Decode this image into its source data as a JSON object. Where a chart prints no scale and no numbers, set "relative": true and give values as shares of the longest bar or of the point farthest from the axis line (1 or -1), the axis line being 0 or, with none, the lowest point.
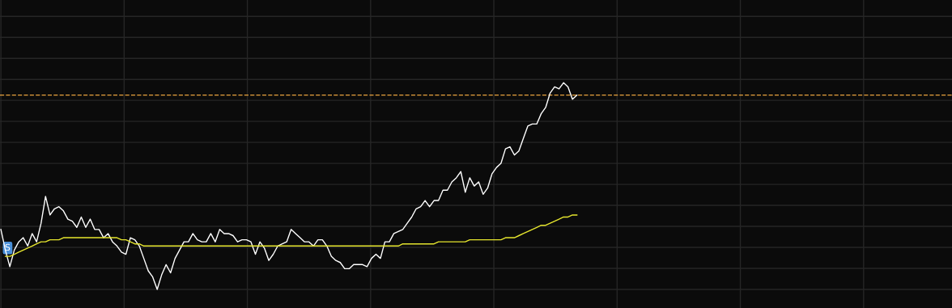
{
  "chart_data": {
    "type": "line",
    "relative": true,
    "grid": true,
    "marker": "none",
    "line_style": "solid",
    "categories": [
      null,
      null,
      null,
      null,
      null,
      null,
      null,
      null,
      null,
      null,
      null,
      null,
      null,
      null,
      null,
      null,
      null,
      null,
      null,
      null,
      null,
      null,
      null,
      null,
      null,
      null,
      null,
      null,
      null,
      null,
      null,
      null,
      null,
      null,
      null,
      null,
      null,
      null,
      null,
      null,
      null,
      null,
      null,
      null,
      null,
      null,
      null,
      null,
      null,
      null,
      null,
      null,
      null,
      null,
      null,
      null,
      null,
      null,
      null,
      null,
      null,
      null,
      null,
      null,
      null,
      null,
      null,
      null,
      null,
      null,
      null,
      null,
      null,
      null,
      null,
      null,
      null,
      null,
      null,
      null,
      null,
      null,
      null,
      null,
      null,
      null,
      null,
      null,
      null,
      null,
      null,
      null,
      null,
      null,
      null,
      null,
      null,
      null,
      null,
      null,
      null,
      null,
      null,
      null,
      null,
      null,
      null,
      null,
      null,
      null,
      null,
      null,
      null,
      null,
      null,
      null,
      null,
      null,
      null,
      null,
      null,
      null,
      null,
      null,
      null,
      null,
      null,
      null,
      null,
      null,
      null,
      null,
      null,
      null,
      null,
      null,
      null,
      null,
      null,
      null,
      null,
      null,
      null,
      null,
      null,
      null,
      null,
      null,
      null,
      null,
      null,
      null,
      null,
      null,
      null,
      null,
      null,
      null,
      null,
      null,
      null,
      null,
      null,
      null,
      null,
      null,
      null,
      null,
      null,
      null,
      null,
      null,
      null,
      null,
      null,
      null,
      null,
      null,
      null,
      null,
      null,
      null,
      null,
      null,
      null,
      null,
      null,
      null,
      null,
      null,
      null,
      null,
      null,
      null,
      null,
      null,
      null,
      null,
      null,
      null,
      null,
      null,
      null,
      null,
      null,
      null,
      null,
      null,
      null,
      null,
      null,
      null,
      null,
      null
    ],
    "series": [
      {
        "color": "#ffffff",
        "values": [
          0.29,
          0.19,
          0.11,
          0.19,
          0.23,
          0.25,
          0.21,
          0.27,
          0.23,
          0.32,
          0.45,
          0.36,
          0.39,
          0.4,
          0.38,
          0.34,
          0.33,
          0.3,
          0.35,
          0.3,
          0.34,
          0.29,
          0.29,
          0.25,
          0.27,
          0.23,
          0.21,
          0.18,
          0.17,
          0.25,
          0.24,
          0.21,
          0.15,
          0.09,
          0.06,
          0,
          0.07,
          0.12,
          0.08,
          0.15,
          0.19,
          0.23,
          0.23,
          0.27,
          0.24,
          0.23,
          0.23,
          0.27,
          0.23,
          0.29,
          0.27,
          0.27,
          0.26,
          0.23,
          0.24,
          0.24,
          0.23,
          0.17,
          0.23,
          0.2,
          0.14,
          0.17,
          0.21,
          0.22,
          0.23,
          0.29,
          0.27,
          0.25,
          0.23,
          0.23,
          0.21,
          0.24,
          0.24,
          0.21,
          0.16,
          0.14,
          0.13,
          0.1,
          0.1,
          0.12,
          0.12,
          0.12,
          0.11,
          0.15,
          0.17,
          0.15,
          0.23,
          0.23,
          0.27,
          0.28,
          0.29,
          0.32,
          0.35,
          0.39,
          0.4,
          0.43,
          0.4,
          0.43,
          0.43,
          0.48,
          0.48,
          0.52,
          0.54,
          0.57,
          0.47,
          0.54,
          0.5,
          0.52,
          0.46,
          0.49,
          0.56,
          0.59,
          0.61,
          0.68,
          0.69,
          0.65,
          0.67,
          0.73,
          0.79,
          0.8,
          0.8,
          0.85,
          0.88,
          0.95,
          0.98,
          0.97,
          1.0,
          0.98,
          0.92,
          0.94,
          null,
          null,
          null,
          null,
          null,
          null,
          null,
          null,
          null,
          null,
          null,
          null,
          null,
          null,
          null,
          null,
          null,
          null,
          null,
          null,
          null,
          null,
          null,
          null,
          null,
          null,
          null,
          null,
          null,
          null,
          null,
          null,
          null,
          null,
          null,
          null,
          null,
          null,
          null,
          null,
          null,
          null,
          null,
          null,
          null,
          null,
          null,
          null,
          null,
          null,
          null,
          null,
          null,
          null,
          null,
          null,
          null,
          null,
          null,
          null,
          null,
          null,
          null,
          null,
          null,
          null,
          null,
          null,
          null,
          null,
          null,
          null,
          null,
          null,
          null,
          null,
          null,
          null,
          null,
          null,
          null,
          null,
          null,
          null
        ]
      },
      {
        "color": "#e6e62e",
        "values": [
          null,
          0.16,
          0.16,
          0.17,
          0.18,
          0.19,
          0.2,
          0.21,
          0.22,
          0.23,
          0.23,
          0.24,
          0.24,
          0.24,
          0.25,
          0.25,
          0.25,
          0.25,
          0.25,
          0.25,
          0.25,
          0.25,
          0.25,
          0.25,
          0.25,
          0.25,
          0.25,
          0.24,
          0.24,
          0.23,
          0.22,
          0.22,
          0.21,
          0.21,
          0.21,
          0.21,
          0.21,
          0.21,
          0.21,
          0.21,
          0.21,
          0.21,
          0.21,
          0.21,
          0.21,
          0.21,
          0.21,
          0.21,
          0.21,
          0.21,
          0.21,
          0.21,
          0.21,
          0.21,
          0.21,
          0.21,
          0.21,
          0.21,
          0.21,
          0.21,
          0.21,
          0.21,
          0.21,
          0.21,
          0.21,
          0.21,
          0.21,
          0.21,
          0.21,
          0.21,
          0.21,
          0.21,
          0.21,
          0.21,
          0.21,
          0.21,
          0.21,
          0.21,
          0.21,
          0.21,
          0.21,
          0.21,
          0.21,
          0.21,
          0.21,
          0.21,
          0.21,
          0.21,
          0.21,
          0.21,
          0.22,
          0.22,
          0.22,
          0.22,
          0.22,
          0.22,
          0.22,
          0.22,
          0.23,
          0.23,
          0.23,
          0.23,
          0.23,
          0.23,
          0.23,
          0.24,
          0.24,
          0.24,
          0.24,
          0.24,
          0.24,
          0.24,
          0.24,
          0.25,
          0.25,
          0.25,
          0.26,
          0.27,
          0.28,
          0.29,
          0.3,
          0.31,
          0.31,
          0.32,
          0.33,
          0.34,
          0.35,
          0.35,
          0.36,
          0.36,
          null,
          null,
          null,
          null,
          null,
          null,
          null,
          null,
          null,
          null,
          null,
          null,
          null,
          null,
          null,
          null,
          null,
          null,
          null,
          null,
          null,
          null,
          null,
          null,
          null,
          null,
          null,
          null,
          null,
          null,
          null,
          null,
          null,
          null,
          null,
          null,
          null,
          null,
          null,
          null,
          null,
          null,
          null,
          null,
          null,
          null,
          null,
          null,
          null,
          null,
          null,
          null,
          null,
          null,
          null,
          null,
          null,
          null,
          null,
          null,
          null,
          null,
          null,
          null,
          null,
          null,
          null,
          null,
          null,
          null,
          null,
          null,
          null,
          null,
          null,
          null,
          null,
          null,
          null,
          null,
          null,
          null,
          null,
          null
        ]
      }
    ],
    "ref_lines": [
      {
        "axis": "y",
        "value": 0.94,
        "color": "#e8a33d",
        "line_style": "dashed"
      }
    ],
    "annotations": [
      {
        "text": "S",
        "y": 0.2
      }
    ]
  }
}
